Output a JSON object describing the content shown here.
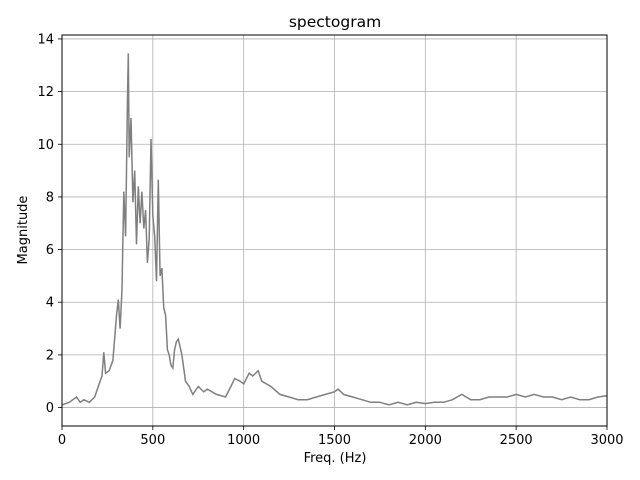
{
  "chart_data": {
    "type": "line",
    "title": "spectogram",
    "xlabel": "Freq. (Hz)",
    "ylabel": "Magnitude",
    "xlim": [
      0,
      3000
    ],
    "ylim": [
      -0.7,
      14.15
    ],
    "xticks": [
      0,
      500,
      1000,
      1500,
      2000,
      2500,
      3000
    ],
    "yticks": [
      0,
      2,
      4,
      6,
      8,
      10,
      12,
      14
    ],
    "grid": true,
    "colors": {
      "line": "#7f7f7f",
      "grid": "#b0b0b0",
      "axes": "#000000"
    },
    "series": [
      {
        "x": [
          0,
          40,
          80,
          100,
          120,
          150,
          180,
          200,
          220,
          230,
          240,
          260,
          280,
          300,
          310,
          320,
          330,
          340,
          350,
          360,
          365,
          370,
          380,
          390,
          400,
          410,
          420,
          430,
          440,
          450,
          460,
          470,
          480,
          490,
          500,
          510,
          520,
          530,
          540,
          550,
          560,
          570,
          580,
          590,
          600,
          610,
          620,
          630,
          640,
          650,
          660,
          670,
          680,
          700,
          720,
          750,
          780,
          800,
          850,
          900,
          930,
          950,
          980,
          1000,
          1030,
          1050,
          1080,
          1100,
          1150,
          1200,
          1250,
          1300,
          1350,
          1400,
          1450,
          1500,
          1520,
          1550,
          1600,
          1650,
          1700,
          1750,
          1800,
          1850,
          1900,
          1950,
          2000,
          2050,
          2100,
          2150,
          2200,
          2250,
          2300,
          2350,
          2400,
          2450,
          2500,
          2550,
          2600,
          2650,
          2700,
          2750,
          2800,
          2850,
          2900,
          2950,
          3000
        ],
        "y": [
          0.1,
          0.2,
          0.4,
          0.2,
          0.3,
          0.2,
          0.4,
          0.8,
          1.2,
          2.1,
          1.3,
          1.4,
          1.8,
          3.5,
          4.1,
          3.0,
          4.5,
          8.2,
          6.5,
          11.5,
          13.45,
          9.5,
          11.0,
          7.8,
          9.0,
          6.2,
          8.4,
          7.0,
          8.2,
          6.8,
          7.5,
          5.5,
          6.4,
          10.2,
          7.3,
          6.5,
          4.8,
          8.65,
          5.0,
          5.3,
          3.8,
          3.5,
          2.2,
          2.0,
          1.6,
          1.5,
          2.2,
          2.5,
          2.6,
          2.3,
          2.0,
          1.5,
          1.0,
          0.8,
          0.5,
          0.8,
          0.6,
          0.7,
          0.5,
          0.4,
          0.8,
          1.1,
          1.0,
          0.9,
          1.3,
          1.2,
          1.4,
          1.0,
          0.8,
          0.5,
          0.4,
          0.3,
          0.3,
          0.4,
          0.5,
          0.6,
          0.7,
          0.5,
          0.4,
          0.3,
          0.2,
          0.2,
          0.1,
          0.2,
          0.1,
          0.2,
          0.15,
          0.2,
          0.2,
          0.3,
          0.5,
          0.3,
          0.3,
          0.4,
          0.4,
          0.4,
          0.5,
          0.4,
          0.5,
          0.4,
          0.4,
          0.3,
          0.4,
          0.3,
          0.3,
          0.4,
          0.45
        ]
      }
    ]
  }
}
